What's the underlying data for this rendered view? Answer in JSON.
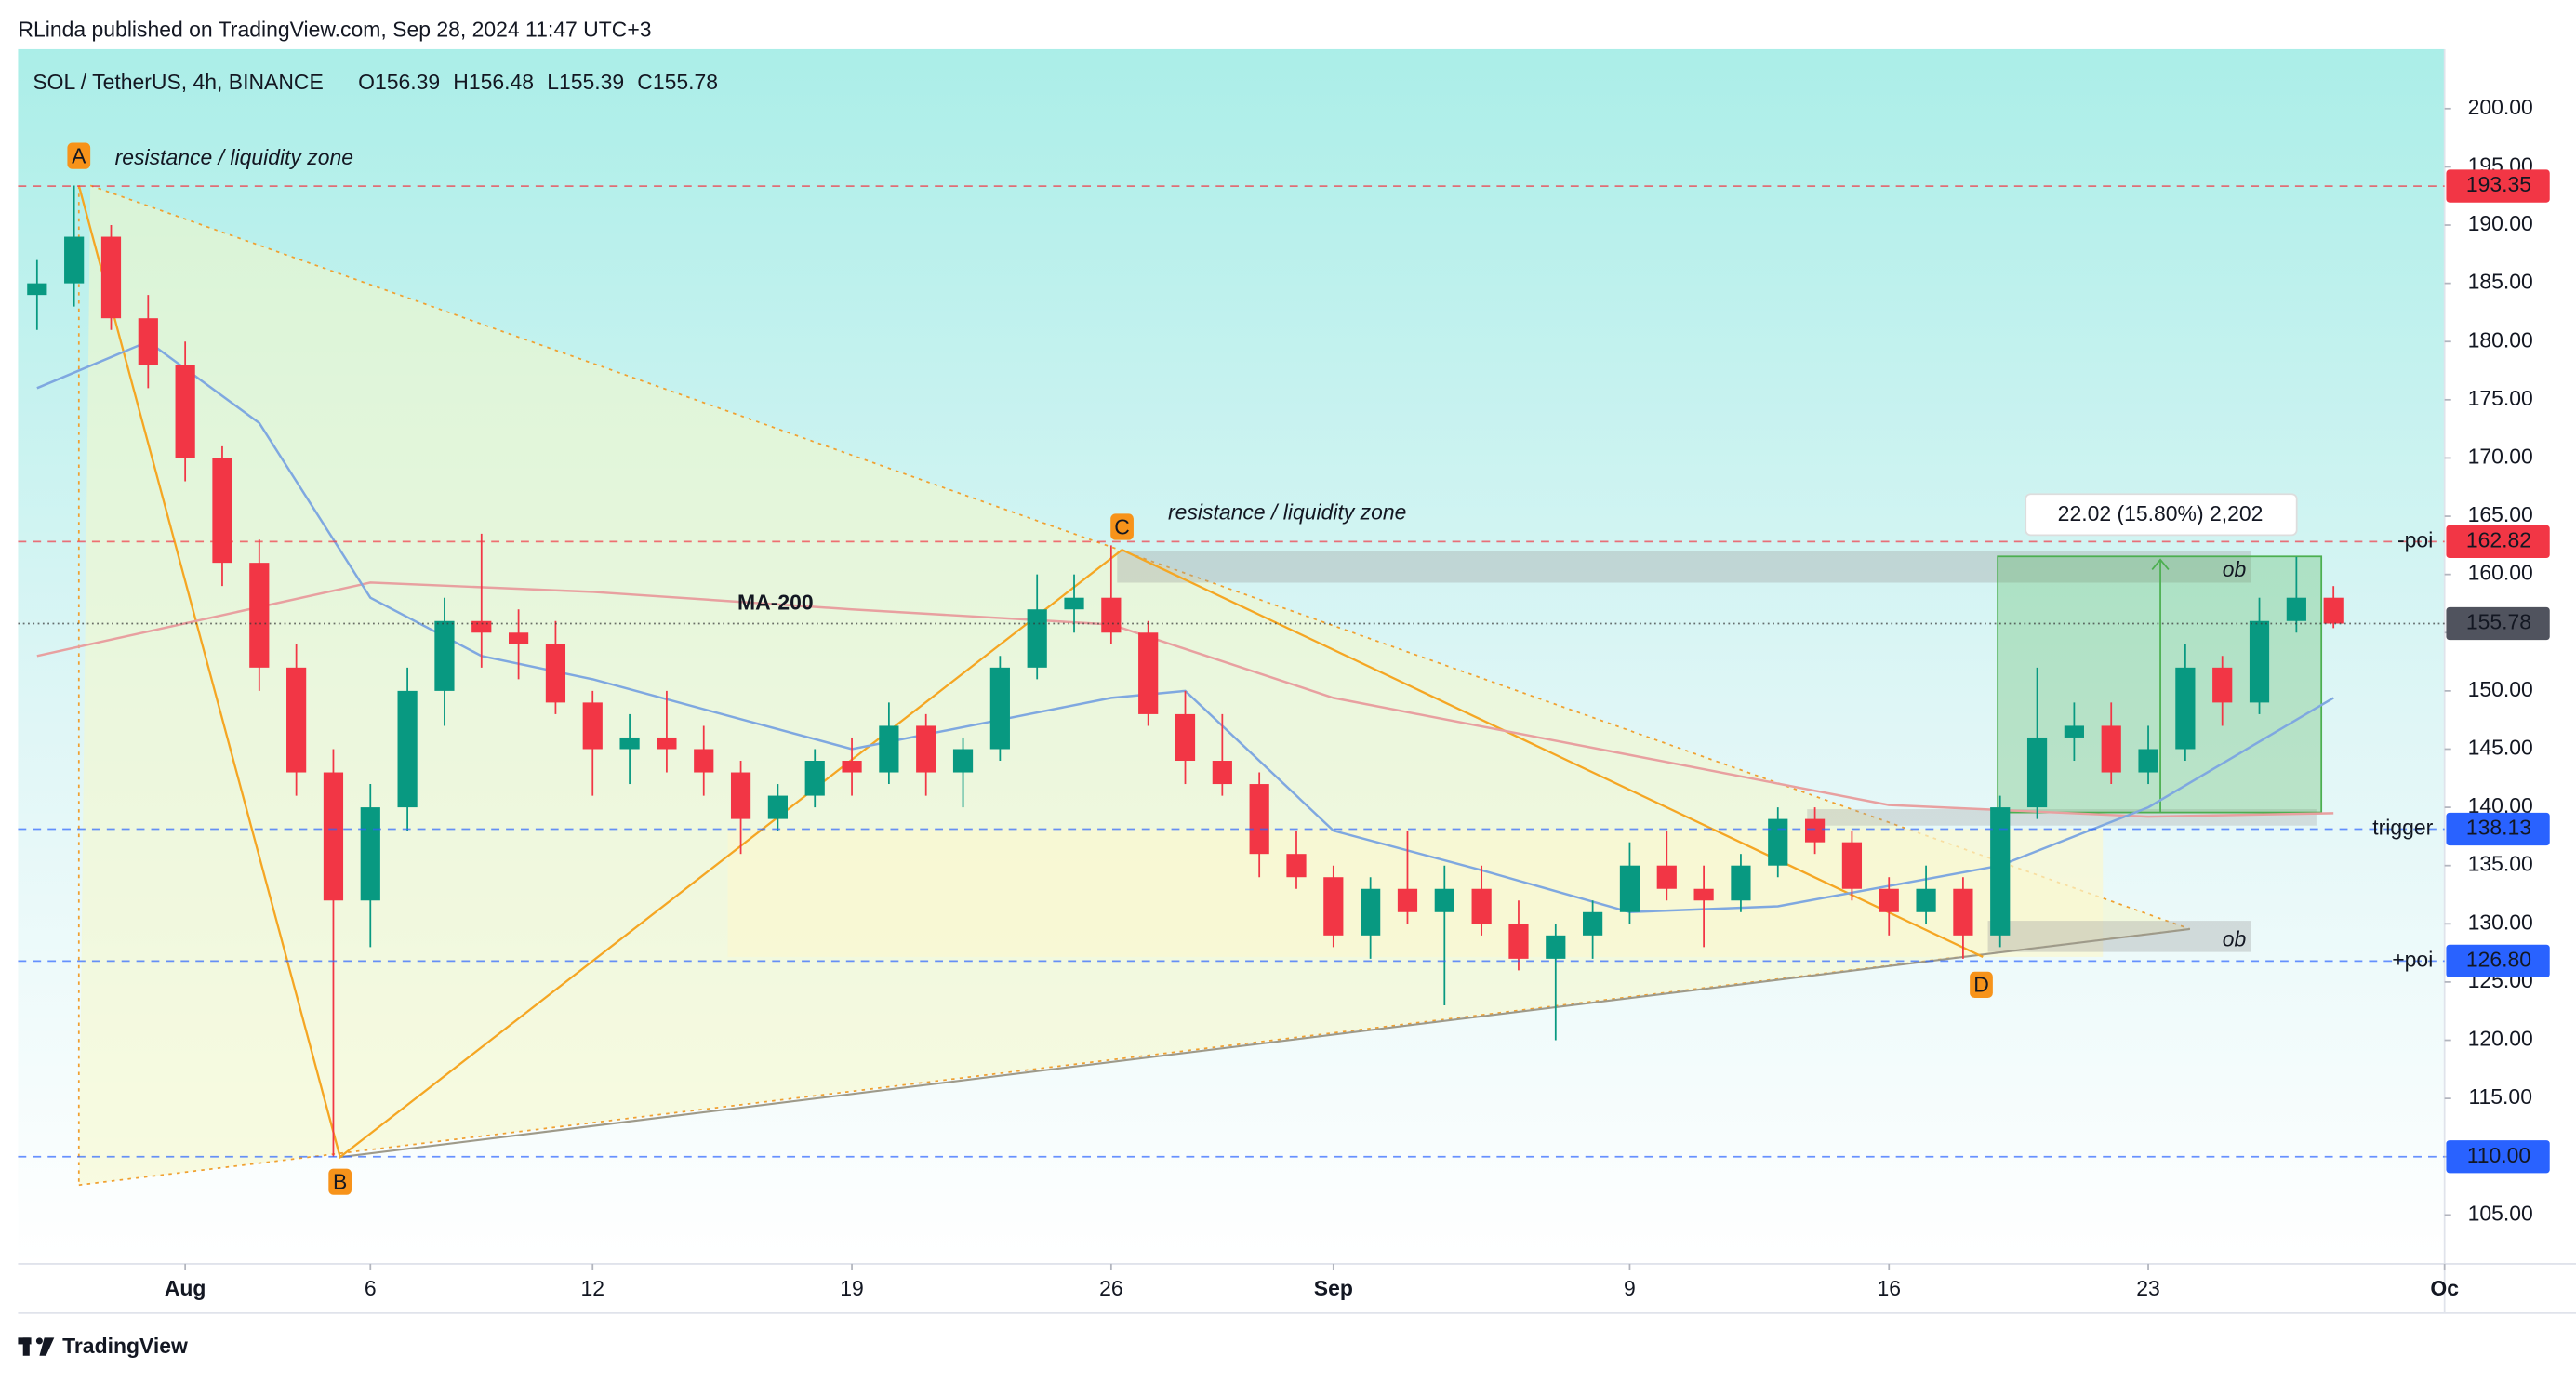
{
  "header": {
    "published": "RLinda published on TradingView.com, Sep 28, 2024 11:47 UTC+3",
    "brand": "TradingView"
  },
  "chart_data": {
    "type": "candlestick",
    "title": "SOL / TetherUS, 4h, BINANCE",
    "ohlc_labels": [
      "O156.39",
      "H156.48",
      "L155.39",
      "C155.78"
    ],
    "x": [
      "Jul 28",
      "Jul 29",
      "Jul 30",
      "Jul 31",
      "Aug 1",
      "Aug 2",
      "Aug 3",
      "Aug 4",
      "Aug 5",
      "Aug 6",
      "Aug 7",
      "Aug 8",
      "Aug 9",
      "Aug 10",
      "Aug 11",
      "Aug 12",
      "Aug 13",
      "Aug 14",
      "Aug 15",
      "Aug 16",
      "Aug 17",
      "Aug 18",
      "Aug 19",
      "Aug 20",
      "Aug 21",
      "Aug 22",
      "Aug 23",
      "Aug 24",
      "Aug 25",
      "Aug 26",
      "Aug 27",
      "Aug 28",
      "Aug 29",
      "Aug 30",
      "Aug 31",
      "Sep 1",
      "Sep 2",
      "Sep 3",
      "Sep 4",
      "Sep 5",
      "Sep 6",
      "Sep 7",
      "Sep 8",
      "Sep 9",
      "Sep 10",
      "Sep 11",
      "Sep 12",
      "Sep 13",
      "Sep 14",
      "Sep 15",
      "Sep 16",
      "Sep 17",
      "Sep 18",
      "Sep 19",
      "Sep 20",
      "Sep 21",
      "Sep 22",
      "Sep 23",
      "Sep 24",
      "Sep 25",
      "Sep 26",
      "Sep 27",
      "Sep 28"
    ],
    "open": [
      184,
      185,
      189,
      182,
      178,
      170,
      161,
      152,
      143,
      132,
      140,
      150,
      156,
      155,
      154,
      149,
      145,
      146,
      145,
      143,
      139,
      141,
      144,
      143,
      147,
      143,
      145,
      152,
      157,
      158,
      155,
      148,
      144,
      142,
      136,
      134,
      129,
      133,
      131,
      133,
      130,
      127,
      129,
      131,
      135,
      133,
      132,
      135,
      139,
      137,
      133,
      131,
      133,
      129,
      140,
      146,
      147,
      143,
      145,
      152,
      149,
      156,
      158
    ],
    "high": [
      187,
      193.4,
      190,
      184,
      180,
      171,
      163,
      154,
      145,
      142,
      152,
      158,
      163.5,
      157,
      156,
      150,
      148,
      150,
      147,
      144,
      142,
      145,
      146,
      149,
      148,
      146,
      153,
      160,
      160,
      162.5,
      156,
      150,
      148,
      143,
      138,
      135,
      134,
      138,
      135,
      135,
      132,
      130,
      132,
      137,
      138,
      135,
      136,
      140,
      140,
      138,
      134,
      135,
      134,
      141,
      152,
      149,
      149,
      147,
      154,
      153,
      158,
      161.5,
      159
    ],
    "low": [
      181,
      183,
      181,
      176,
      168,
      159,
      150,
      141,
      110,
      128,
      138,
      147,
      152,
      151,
      148,
      141,
      142,
      143,
      141,
      136,
      138,
      140,
      141,
      142,
      141,
      140,
      144,
      151,
      155,
      154,
      147,
      142,
      141,
      134,
      133,
      128,
      127,
      130,
      123,
      129,
      126,
      120,
      127,
      130,
      132,
      128,
      131,
      134,
      136,
      132,
      129,
      130,
      127,
      128,
      139,
      144,
      142,
      142,
      144,
      147,
      148,
      155,
      155.39
    ],
    "close": [
      185,
      189,
      182,
      178,
      170,
      161,
      152,
      143,
      132,
      140,
      150,
      156,
      155,
      154,
      149,
      145,
      146,
      145,
      143,
      139,
      141,
      144,
      143,
      147,
      143,
      145,
      152,
      157,
      158,
      155,
      148,
      144,
      142,
      136,
      134,
      129,
      133,
      131,
      133,
      130,
      127,
      129,
      131,
      135,
      133,
      132,
      135,
      139,
      137,
      133,
      131,
      133,
      129,
      140,
      146,
      147,
      143,
      145,
      152,
      149,
      156,
      158,
      155.78
    ],
    "up_color": "#089981",
    "down_color": "#f23645",
    "ma200": {
      "label": "MA-200",
      "color": "#e8a0a0",
      "x": [
        "Jul 28",
        "Aug 6",
        "Aug 12",
        "Aug 19",
        "Aug 26",
        "Sep 1",
        "Sep 9",
        "Sep 16",
        "Sep 23",
        "Sep 28"
      ],
      "values": [
        153,
        159.3,
        158.5,
        157,
        155.7,
        149.4,
        144.5,
        140.2,
        139.2,
        139.5
      ]
    },
    "ma": {
      "color": "#7fa8e0",
      "x": [
        "Jul 28",
        "Jul 31",
        "Aug 3",
        "Aug 6",
        "Aug 9",
        "Aug 12",
        "Aug 19",
        "Aug 26",
        "Aug 28",
        "Sep 1",
        "Sep 5",
        "Sep 9",
        "Sep 13",
        "Sep 19",
        "Sep 23",
        "Sep 28"
      ],
      "values": [
        176,
        180,
        173,
        158,
        153,
        151,
        145,
        149.4,
        150,
        138,
        134.6,
        131,
        131.5,
        135,
        140,
        149.4
      ]
    },
    "levels": [
      {
        "value": 193.35,
        "color": "#f23645"
      },
      {
        "value": 162.82,
        "color": "#f23645",
        "tag": "-poi"
      },
      {
        "value": 155.78,
        "color": "#50535e"
      },
      {
        "value": 138.13,
        "color": "#2962ff",
        "tag": "trigger"
      },
      {
        "value": 126.8,
        "label": "126.80",
        "color": "#2962ff",
        "tag": "+poi"
      },
      {
        "value": 110,
        "label": "110.00",
        "color": "#2962ff"
      }
    ],
    "annotations": {
      "zone1": "resistance / liquidity zone",
      "zone2": "resistance / liquidity zone",
      "ob1": "ob",
      "ob2": "ob",
      "measure": "22.02 (15.80%) 2,202",
      "points": [
        "A",
        "B",
        "C",
        "D"
      ]
    },
    "xlim": [
      "Jul 27",
      "Oct 1"
    ],
    "xticks": [
      {
        "value": "Aug 1",
        "label": "Aug"
      },
      {
        "value": "Aug 6",
        "label": "6"
      },
      {
        "value": "Aug 12",
        "label": "12"
      },
      {
        "value": "Aug 19",
        "label": "19"
      },
      {
        "value": "Aug 26",
        "label": "26"
      },
      {
        "value": "Sep 1",
        "label": "Sep"
      },
      {
        "value": "Sep 9",
        "label": "9"
      },
      {
        "value": "Sep 16",
        "label": "16"
      },
      {
        "value": "Sep 23",
        "label": "23"
      },
      {
        "value": "Oct 1",
        "label": "Oc"
      }
    ],
    "ylim": [
      100.8,
      205.1
    ],
    "yticks": [
      {
        "value": 105,
        "label": "105.00"
      },
      {
        "value": 110,
        "label": "110.00"
      },
      {
        "value": 115,
        "label": "115.00"
      },
      {
        "value": 120,
        "label": "120.00"
      },
      {
        "value": 125,
        "label": "125.00"
      },
      {
        "value": 130,
        "label": "130.00"
      },
      {
        "value": 135,
        "label": "135.00"
      },
      {
        "value": 140,
        "label": "140.00"
      },
      {
        "value": 145,
        "label": "145.00"
      },
      {
        "value": 150,
        "label": "150.00"
      },
      {
        "value": 155,
        "label": "155.00"
      },
      {
        "value": 160,
        "label": "160.00"
      },
      {
        "value": 165,
        "label": "165.00"
      },
      {
        "value": 170,
        "label": "170.00"
      },
      {
        "value": 175,
        "label": "175.00"
      },
      {
        "value": 180,
        "label": "180.00"
      },
      {
        "value": 185,
        "label": "185.00"
      },
      {
        "value": 190,
        "label": "190.00"
      },
      {
        "value": 195,
        "label": "195.00"
      },
      {
        "value": 200,
        "label": "200.00"
      }
    ]
  }
}
